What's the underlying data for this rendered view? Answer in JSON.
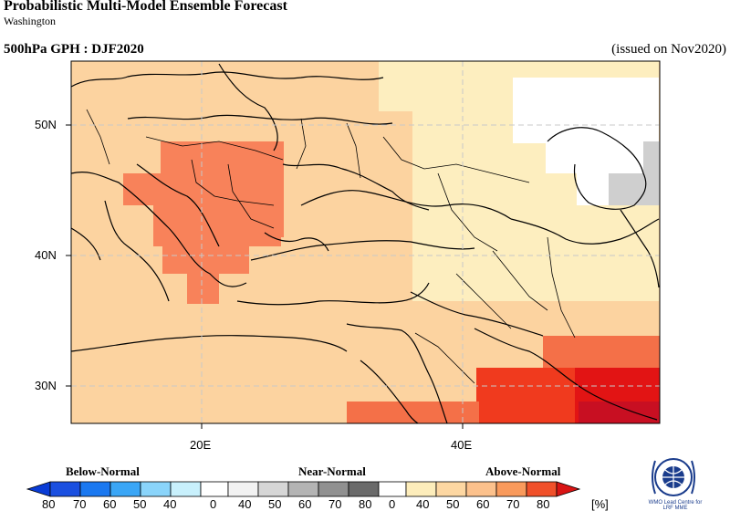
{
  "header": {
    "title": "Probabilistic Multi-Model Ensemble Forecast",
    "subtitle": "Washington",
    "variable_season": "500hPa GPH : DJF2020",
    "issued": "(issued on Nov2020)"
  },
  "map": {
    "lat_labels": [
      "50N",
      "40N",
      "30N"
    ],
    "lon_labels": [
      "20E",
      "40E"
    ]
  },
  "legend": {
    "groups": {
      "below": "Below-Normal",
      "near": "Near-Normal",
      "above": "Above-Normal"
    },
    "ticks": [
      "80",
      "70",
      "60",
      "50",
      "40",
      "0",
      "40",
      "50",
      "60",
      "70",
      "80",
      "0",
      "40",
      "50",
      "60",
      "70",
      "80"
    ],
    "unit": "[%]",
    "colors": {
      "below": [
        "#0a3cd6",
        "#1a78f0",
        "#3aa6f6",
        "#8ad4fa",
        "#c8f0fc"
      ],
      "near": [
        "#e6e6e6",
        "#c4c4c4",
        "#a0a0a0",
        "#7c7c7c",
        "#585858"
      ],
      "above": [
        "#fde6b0",
        "#fcc98e",
        "#f99a5c",
        "#f0502a",
        "#d91414"
      ]
    }
  },
  "logo": {
    "text_line1": "WMO Lead Centre for",
    "text_line2": "LRF MME"
  }
}
